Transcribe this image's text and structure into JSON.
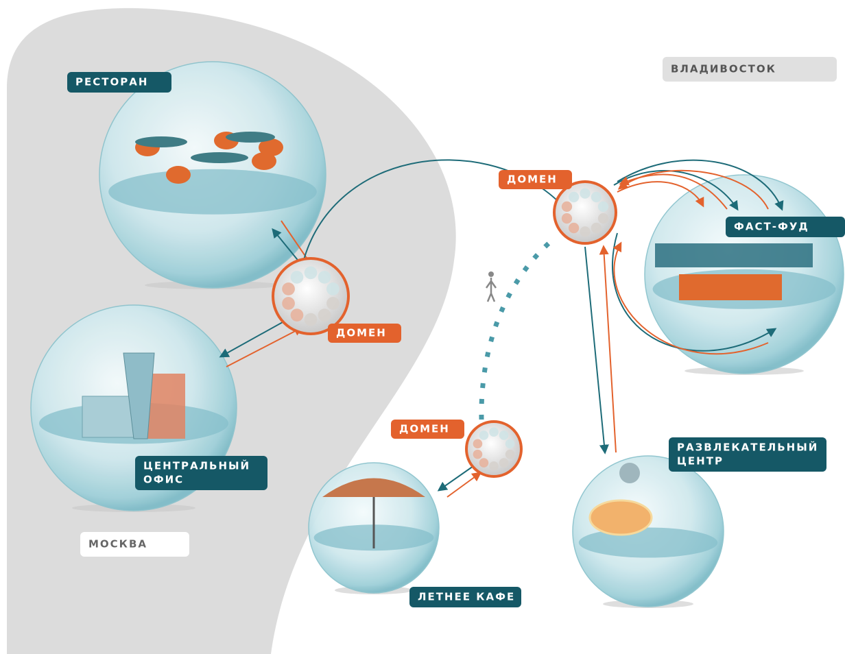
{
  "regions": [
    {
      "label": "МОСКВА"
    },
    {
      "label": "ВЛАДИВОСТОК"
    }
  ],
  "locations": [
    {
      "label": [
        "РЕСТОРАН"
      ]
    },
    {
      "label": [
        "ЦЕНТРАЛЬНЫЙ",
        "ОФИС"
      ]
    },
    {
      "label": [
        "ЛЕТНЕЕ КАФЕ"
      ]
    },
    {
      "label": [
        "ФАСТ-ФУД"
      ]
    },
    {
      "label": [
        "РАЗВЛЕКАТЕЛЬНЫЙ",
        "ЦЕНТР"
      ]
    }
  ],
  "domains": [
    {
      "label": "ДОМЕН"
    },
    {
      "label": "ДОМЕН"
    },
    {
      "label": "ДОМЕН"
    }
  ]
}
